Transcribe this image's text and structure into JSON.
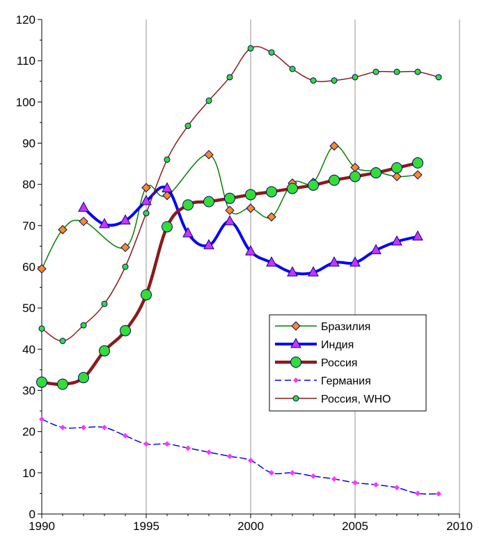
{
  "chart_data": {
    "type": "line",
    "title": "",
    "xlabel": "",
    "ylabel": "",
    "xlim": [
      1990,
      2010
    ],
    "ylim": [
      0,
      120
    ],
    "x_ticks": [
      1990,
      1995,
      2000,
      2005,
      2010
    ],
    "x_tick_labels": [
      "1990",
      "1995",
      "2000",
      "2005",
      "2010"
    ],
    "y_ticks": [
      0,
      10,
      20,
      30,
      40,
      50,
      60,
      70,
      80,
      90,
      100,
      110,
      120
    ],
    "y_tick_labels": [
      "0",
      "10",
      "20",
      "30",
      "40",
      "50",
      "60",
      "70",
      "80",
      "90",
      "100",
      "110",
      "120"
    ],
    "grid": "vertical",
    "legend_position": "center-right",
    "series": [
      {
        "name": "Бразилия",
        "color": "#008000",
        "marker": "diamond",
        "marker_fill": "#ff8c1a",
        "points": [
          [
            1990,
            59.5
          ],
          [
            1991,
            69
          ],
          [
            1992,
            71
          ],
          [
            1994,
            64.7
          ],
          [
            1995,
            79.2
          ],
          [
            1996,
            77.3
          ],
          [
            1998,
            87.2
          ],
          [
            1999,
            73.7
          ],
          [
            2000,
            74.2
          ],
          [
            2001,
            72.1
          ],
          [
            2002,
            80.3
          ],
          [
            2003,
            80.5
          ],
          [
            2004,
            89.3
          ],
          [
            2005,
            84.1
          ],
          [
            2006,
            83.1
          ],
          [
            2007,
            81.9
          ],
          [
            2008,
            82.3
          ]
        ]
      },
      {
        "name": "Индия",
        "color": "#0000ff",
        "marker": "triangle",
        "marker_fill": "#cc33ff",
        "points": [
          [
            1992,
            74.3
          ],
          [
            1993,
            70.3
          ],
          [
            1994,
            71.2
          ],
          [
            1995,
            75.9
          ],
          [
            1996,
            79
          ],
          [
            1997,
            68.1
          ],
          [
            1998,
            65.2
          ],
          [
            1999,
            71
          ],
          [
            2000,
            63.7
          ],
          [
            2001,
            61
          ],
          [
            2002,
            58.6
          ],
          [
            2003,
            58.6
          ],
          [
            2004,
            61
          ],
          [
            2005,
            61
          ],
          [
            2006,
            64
          ],
          [
            2007,
            66.1
          ],
          [
            2008,
            67.3
          ]
        ]
      },
      {
        "name": "Россия",
        "color": "#8b1a1a",
        "marker": "circle",
        "marker_fill": "#33dd33",
        "points": [
          [
            1990,
            32
          ],
          [
            1991,
            31.5
          ],
          [
            1992,
            33.1
          ],
          [
            1993,
            39.6
          ],
          [
            1994,
            44.5
          ],
          [
            1995,
            53.2
          ],
          [
            1996,
            69.7
          ],
          [
            1997,
            75
          ],
          [
            1998,
            75.8
          ],
          [
            1999,
            76.6
          ],
          [
            2000,
            77.5
          ],
          [
            2001,
            78.2
          ],
          [
            2002,
            79
          ],
          [
            2003,
            79.8
          ],
          [
            2004,
            81
          ],
          [
            2005,
            81.9
          ],
          [
            2006,
            82.8
          ],
          [
            2007,
            84
          ],
          [
            2008,
            85.2
          ]
        ]
      },
      {
        "name": "Германия",
        "color": "#0000ff",
        "marker": "small-diamond",
        "marker_fill": "#ff33ff",
        "points": [
          [
            1990,
            23
          ],
          [
            1991,
            21
          ],
          [
            1992,
            21
          ],
          [
            1993,
            21
          ],
          [
            1994,
            19
          ],
          [
            1995,
            17
          ],
          [
            1996,
            17
          ],
          [
            1997,
            16
          ],
          [
            1998,
            15
          ],
          [
            1999,
            14
          ],
          [
            2000,
            13
          ],
          [
            2001,
            10
          ],
          [
            2002,
            10
          ],
          [
            2003,
            9.2
          ],
          [
            2004,
            8.5
          ],
          [
            2005,
            7.6
          ],
          [
            2006,
            7.1
          ],
          [
            2007,
            6.4
          ],
          [
            2008,
            5
          ],
          [
            2009,
            4.9
          ]
        ]
      },
      {
        "name": "Россия, WHO",
        "color": "#8b1a1a",
        "marker": "small-circle",
        "marker_fill": "#33dd33",
        "points": [
          [
            1990,
            45
          ],
          [
            1991,
            42
          ],
          [
            1992,
            45.8
          ],
          [
            1993,
            51
          ],
          [
            1994,
            60
          ],
          [
            1995,
            73
          ],
          [
            1996,
            86
          ],
          [
            1997,
            94.2
          ],
          [
            1998,
            100.3
          ],
          [
            1999,
            106
          ],
          [
            2000,
            113
          ],
          [
            2001,
            112
          ],
          [
            2002,
            108
          ],
          [
            2003,
            105.2
          ],
          [
            2004,
            105.2
          ],
          [
            2005,
            106
          ],
          [
            2006,
            107.3
          ],
          [
            2007,
            107.3
          ],
          [
            2008,
            107.3
          ],
          [
            2009,
            106
          ]
        ]
      }
    ]
  }
}
